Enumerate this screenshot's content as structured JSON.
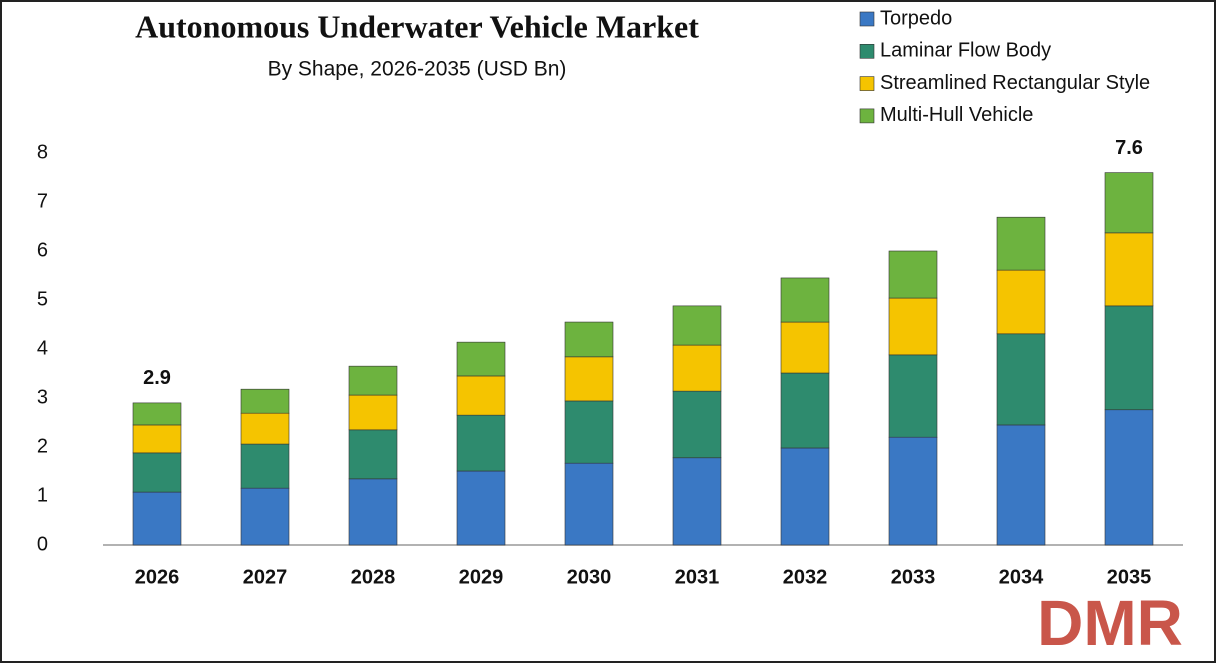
{
  "chart_data": {
    "type": "stacked_bar",
    "title": "Autonomous Underwater Vehicle Market",
    "subtitle": "By Shape, 2026-2035 (USD Bn)",
    "categories": [
      "2026",
      "2027",
      "2028",
      "2029",
      "2030",
      "2031",
      "2032",
      "2033",
      "2034",
      "2035"
    ],
    "series": [
      {
        "name": "Torpedo",
        "color": "#3a78c4",
        "values": [
          1.08,
          1.16,
          1.35,
          1.51,
          1.67,
          1.78,
          1.98,
          2.2,
          2.45,
          2.76
        ]
      },
      {
        "name": "Laminar Flow Body",
        "color": "#2e8b6e",
        "values": [
          0.8,
          0.9,
          1.0,
          1.14,
          1.27,
          1.36,
          1.53,
          1.68,
          1.86,
          2.12
        ]
      },
      {
        "name": "Streamlined Rectangular Style",
        "color": "#f5c400",
        "values": [
          0.57,
          0.63,
          0.71,
          0.8,
          0.9,
          0.94,
          1.04,
          1.16,
          1.3,
          1.49
        ]
      },
      {
        "name": "Multi-Hull Vehicle",
        "color": "#6db33f",
        "values": [
          0.45,
          0.49,
          0.59,
          0.69,
          0.71,
          0.8,
          0.9,
          0.96,
          1.08,
          1.23
        ]
      }
    ],
    "annotations": [
      {
        "x": "2026",
        "y": 2.9,
        "label": "2.9"
      },
      {
        "x": "2035",
        "y": 7.6,
        "label": "7.6"
      }
    ],
    "ylim": [
      0,
      8
    ],
    "yticks": [
      0,
      1,
      2,
      3,
      4,
      5,
      6,
      7,
      8
    ],
    "grid": false,
    "watermark": "DMR"
  }
}
